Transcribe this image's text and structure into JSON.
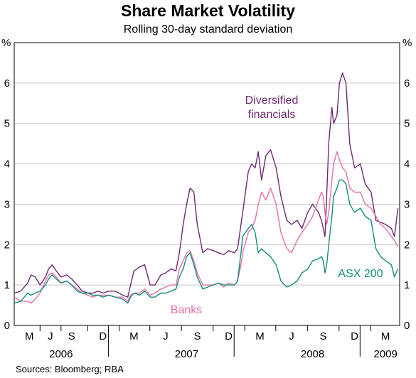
{
  "chart_data": {
    "type": "line",
    "title": "Share Market Volatility",
    "subtitle": "Rolling 30-day standard deviation",
    "y_unit_left": "%",
    "y_unit_right": "%",
    "ylim": [
      0,
      7
    ],
    "yticks": [
      "0",
      "1",
      "2",
      "3",
      "4",
      "5",
      "6"
    ],
    "x_range": [
      "2006-04-01",
      "2009-04-25"
    ],
    "month_ticks": [
      "M",
      "J",
      "S",
      "D",
      "M",
      "J",
      "S",
      "D",
      "M",
      "J",
      "S",
      "D",
      "M"
    ],
    "month_tick_dates": [
      "2006-05-15",
      "2006-07-15",
      "2006-09-15",
      "2006-12-15",
      "2007-03-15",
      "2007-06-15",
      "2007-09-15",
      "2007-12-15",
      "2008-03-15",
      "2008-06-15",
      "2008-09-15",
      "2008-12-15",
      "2009-03-15"
    ],
    "year_labels": [
      "2006",
      "2007",
      "2008",
      "2009"
    ],
    "year_label_dates": [
      "2006-08-15",
      "2007-08-15",
      "2008-08-15",
      "2009-03-15"
    ],
    "grid": "horizontal",
    "series": [
      {
        "name": "Diversified financials",
        "color": "#6e2a73",
        "x": [
          "2006-04-01",
          "2006-04-20",
          "2006-05-10",
          "2006-05-20",
          "2006-06-01",
          "2006-06-15",
          "2006-07-01",
          "2006-07-10",
          "2006-07-20",
          "2006-08-01",
          "2006-08-15",
          "2006-09-01",
          "2006-09-15",
          "2006-10-01",
          "2006-10-15",
          "2006-11-01",
          "2006-11-15",
          "2006-12-01",
          "2006-12-15",
          "2007-01-01",
          "2007-01-20",
          "2007-02-10",
          "2007-02-25",
          "2007-03-05",
          "2007-03-15",
          "2007-04-01",
          "2007-04-15",
          "2007-05-01",
          "2007-05-15",
          "2007-06-01",
          "2007-06-15",
          "2007-07-01",
          "2007-07-15",
          "2007-07-25",
          "2007-08-05",
          "2007-08-15",
          "2007-08-25",
          "2007-09-05",
          "2007-09-15",
          "2007-10-01",
          "2007-10-15",
          "2007-11-01",
          "2007-11-15",
          "2007-12-01",
          "2007-12-15",
          "2008-01-01",
          "2008-01-10",
          "2008-01-20",
          "2008-01-25",
          "2008-02-10",
          "2008-02-20",
          "2008-03-01",
          "2008-03-10",
          "2008-03-20",
          "2008-04-01",
          "2008-04-15",
          "2008-05-01",
          "2008-05-15",
          "2008-06-01",
          "2008-06-15",
          "2008-07-01",
          "2008-07-15",
          "2008-08-01",
          "2008-08-15",
          "2008-09-01",
          "2008-09-10",
          "2008-09-15",
          "2008-09-20",
          "2008-09-25",
          "2008-10-01",
          "2008-10-10",
          "2008-10-15",
          "2008-10-25",
          "2008-11-01",
          "2008-11-10",
          "2008-11-20",
          "2008-12-01",
          "2008-12-15",
          "2009-01-01",
          "2009-01-15",
          "2009-02-01",
          "2009-02-15",
          "2009-03-01",
          "2009-03-15",
          "2009-04-01",
          "2009-04-10",
          "2009-04-20"
        ],
        "values": [
          0.8,
          0.85,
          1.05,
          1.25,
          1.2,
          1.0,
          1.2,
          1.4,
          1.5,
          1.35,
          1.2,
          1.25,
          1.15,
          1.0,
          0.85,
          0.8,
          0.8,
          0.85,
          0.8,
          0.85,
          0.85,
          0.75,
          0.7,
          1.0,
          1.35,
          1.45,
          1.5,
          1.0,
          1.0,
          1.25,
          1.3,
          1.4,
          1.35,
          1.8,
          2.5,
          3.0,
          3.4,
          3.3,
          2.5,
          1.8,
          1.9,
          1.85,
          1.8,
          1.75,
          1.85,
          1.8,
          1.9,
          2.5,
          2.8,
          3.8,
          4.0,
          3.9,
          4.3,
          3.6,
          4.2,
          4.35,
          3.9,
          3.2,
          2.6,
          2.5,
          2.6,
          2.4,
          2.8,
          3.0,
          2.8,
          2.6,
          2.4,
          2.2,
          3.2,
          4.5,
          5.4,
          5.0,
          5.2,
          6.0,
          6.25,
          6.0,
          4.5,
          3.9,
          4.0,
          3.5,
          3.3,
          2.6,
          2.55,
          2.5,
          2.4,
          2.2,
          2.9
        ]
      },
      {
        "name": "Banks",
        "color": "#e86fa8",
        "x": [
          "2006-04-01",
          "2006-04-20",
          "2006-05-10",
          "2006-05-20",
          "2006-06-01",
          "2006-06-15",
          "2006-07-01",
          "2006-07-10",
          "2006-07-20",
          "2006-08-01",
          "2006-08-15",
          "2006-09-01",
          "2006-09-15",
          "2006-10-01",
          "2006-10-15",
          "2006-11-01",
          "2006-11-15",
          "2006-12-01",
          "2006-12-15",
          "2007-01-01",
          "2007-01-20",
          "2007-02-10",
          "2007-02-25",
          "2007-03-05",
          "2007-03-15",
          "2007-04-01",
          "2007-04-15",
          "2007-05-01",
          "2007-05-15",
          "2007-06-01",
          "2007-06-15",
          "2007-07-01",
          "2007-07-15",
          "2007-07-25",
          "2007-08-05",
          "2007-08-15",
          "2007-08-25",
          "2007-09-05",
          "2007-09-15",
          "2007-10-01",
          "2007-10-15",
          "2007-11-01",
          "2007-11-15",
          "2007-12-01",
          "2007-12-15",
          "2008-01-01",
          "2008-01-10",
          "2008-01-20",
          "2008-01-25",
          "2008-02-10",
          "2008-02-20",
          "2008-03-01",
          "2008-03-10",
          "2008-03-20",
          "2008-04-01",
          "2008-04-15",
          "2008-05-01",
          "2008-05-15",
          "2008-06-01",
          "2008-06-15",
          "2008-07-01",
          "2008-07-15",
          "2008-08-01",
          "2008-08-15",
          "2008-09-01",
          "2008-09-10",
          "2008-09-15",
          "2008-09-20",
          "2008-09-25",
          "2008-10-01",
          "2008-10-10",
          "2008-10-15",
          "2008-10-25",
          "2008-11-01",
          "2008-11-10",
          "2008-11-20",
          "2008-12-01",
          "2008-12-15",
          "2009-01-01",
          "2009-01-15",
          "2009-02-01",
          "2009-02-15",
          "2009-03-01",
          "2009-03-15",
          "2009-04-01",
          "2009-04-10",
          "2009-04-20"
        ],
        "values": [
          0.7,
          0.6,
          0.6,
          0.55,
          0.65,
          0.8,
          1.1,
          1.25,
          1.3,
          1.2,
          1.05,
          1.1,
          1.0,
          0.9,
          0.8,
          0.75,
          0.7,
          0.75,
          0.75,
          0.75,
          0.7,
          0.7,
          0.6,
          0.75,
          0.8,
          0.8,
          0.9,
          0.75,
          0.8,
          0.9,
          0.95,
          1.0,
          1.0,
          1.4,
          1.6,
          1.8,
          1.85,
          1.6,
          1.3,
          1.0,
          1.0,
          1.0,
          1.05,
          0.95,
          1.05,
          1.0,
          1.1,
          1.5,
          1.8,
          2.3,
          2.4,
          2.6,
          3.0,
          3.3,
          3.1,
          3.4,
          3.0,
          2.3,
          1.9,
          1.8,
          2.1,
          2.3,
          2.5,
          2.7,
          3.1,
          3.3,
          3.2,
          2.8,
          2.5,
          2.8,
          3.6,
          4.0,
          4.3,
          4.1,
          3.9,
          3.8,
          3.4,
          3.3,
          3.3,
          3.0,
          2.9,
          2.7,
          2.5,
          2.4,
          2.2,
          2.1,
          1.95
        ]
      },
      {
        "name": "ASX 200",
        "color": "#138c7a",
        "x": [
          "2006-04-01",
          "2006-04-20",
          "2006-05-10",
          "2006-05-20",
          "2006-06-01",
          "2006-06-15",
          "2006-07-01",
          "2006-07-10",
          "2006-07-20",
          "2006-08-01",
          "2006-08-15",
          "2006-09-01",
          "2006-09-15",
          "2006-10-01",
          "2006-10-15",
          "2006-11-01",
          "2006-11-15",
          "2006-12-01",
          "2006-12-15",
          "2007-01-01",
          "2007-01-20",
          "2007-02-10",
          "2007-02-25",
          "2007-03-05",
          "2007-03-15",
          "2007-04-01",
          "2007-04-15",
          "2007-05-01",
          "2007-05-15",
          "2007-06-01",
          "2007-06-15",
          "2007-07-01",
          "2007-07-15",
          "2007-07-25",
          "2007-08-05",
          "2007-08-15",
          "2007-08-25",
          "2007-09-05",
          "2007-09-15",
          "2007-10-01",
          "2007-10-15",
          "2007-11-01",
          "2007-11-15",
          "2007-12-01",
          "2007-12-15",
          "2008-01-01",
          "2008-01-10",
          "2008-01-20",
          "2008-01-25",
          "2008-02-10",
          "2008-02-20",
          "2008-03-01",
          "2008-03-10",
          "2008-03-20",
          "2008-04-01",
          "2008-04-15",
          "2008-05-01",
          "2008-05-15",
          "2008-06-01",
          "2008-06-15",
          "2008-07-01",
          "2008-07-15",
          "2008-08-01",
          "2008-08-15",
          "2008-09-01",
          "2008-09-10",
          "2008-09-15",
          "2008-09-20",
          "2008-09-25",
          "2008-10-01",
          "2008-10-10",
          "2008-10-15",
          "2008-10-25",
          "2008-11-01",
          "2008-11-10",
          "2008-11-20",
          "2008-12-01",
          "2008-12-15",
          "2009-01-01",
          "2009-01-15",
          "2009-02-01",
          "2009-02-15",
          "2009-03-01",
          "2009-03-15",
          "2009-04-01",
          "2009-04-10",
          "2009-04-20"
        ],
        "values": [
          0.55,
          0.6,
          0.8,
          0.75,
          0.8,
          0.85,
          1.0,
          1.15,
          1.25,
          1.15,
          1.05,
          1.1,
          1.0,
          0.85,
          0.8,
          0.8,
          0.75,
          0.75,
          0.7,
          0.75,
          0.7,
          0.65,
          0.55,
          0.7,
          0.8,
          0.75,
          0.85,
          0.7,
          0.7,
          0.8,
          0.8,
          0.85,
          0.9,
          1.2,
          1.4,
          1.7,
          1.8,
          1.5,
          1.2,
          0.9,
          0.95,
          1.0,
          1.05,
          1.0,
          1.0,
          1.0,
          1.1,
          1.8,
          2.2,
          2.4,
          2.5,
          2.3,
          1.8,
          1.9,
          1.8,
          1.7,
          1.5,
          1.1,
          0.95,
          1.0,
          1.1,
          1.3,
          1.4,
          1.6,
          1.65,
          1.7,
          1.6,
          1.3,
          1.5,
          2.0,
          2.7,
          3.2,
          3.4,
          3.6,
          3.6,
          3.5,
          3.0,
          2.8,
          2.9,
          2.7,
          2.6,
          1.9,
          1.7,
          1.6,
          1.5,
          1.2,
          1.4
        ]
      }
    ],
    "annotations": [
      {
        "text_lines": [
          "Diversified",
          "financials"
        ],
        "series": "Diversified financials"
      },
      {
        "text_lines": [
          "Banks"
        ],
        "series": "Banks"
      },
      {
        "text_lines": [
          "ASX 200"
        ],
        "series": "ASX 200"
      }
    ]
  },
  "footer": {
    "sources": "Sources: Bloomberg; RBA"
  }
}
